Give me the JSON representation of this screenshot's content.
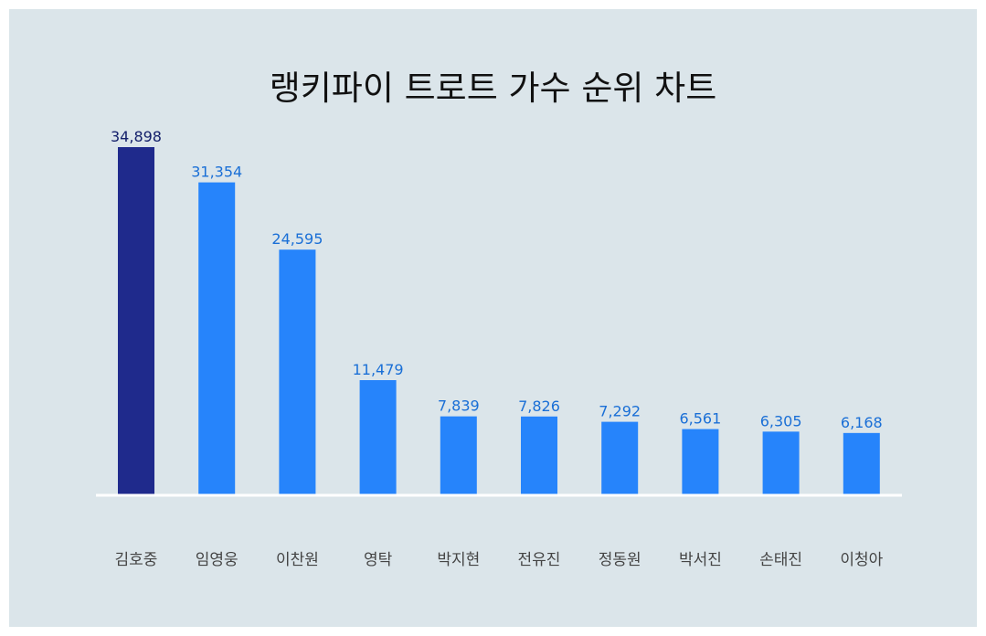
{
  "chart_data": {
    "type": "bar",
    "title": "랭키파이 트로트 가수 순위 차트",
    "categories": [
      "김호중",
      "임영웅",
      "이찬원",
      "영탁",
      "박지현",
      "전유진",
      "정동원",
      "박서진",
      "손태진",
      "이청아"
    ],
    "values": [
      34898,
      31354,
      24595,
      11479,
      7839,
      7826,
      7292,
      6561,
      6305,
      6168
    ],
    "value_labels": [
      "34,898",
      "31,354",
      "24,595",
      "11,479",
      "7,839",
      "7,826",
      "7,292",
      "6,561",
      "6,305",
      "6,168"
    ],
    "ylim": [
      0,
      34898
    ],
    "grid": false,
    "legend": "none",
    "colors": {
      "highlight_bar": "#1f2a8c",
      "bar": "#2684fb",
      "highlight_label": "#14206b",
      "label": "#1a6fd6",
      "category_label": "#444444",
      "baseline": "#ffffff",
      "background": "#dbe5ea"
    }
  }
}
